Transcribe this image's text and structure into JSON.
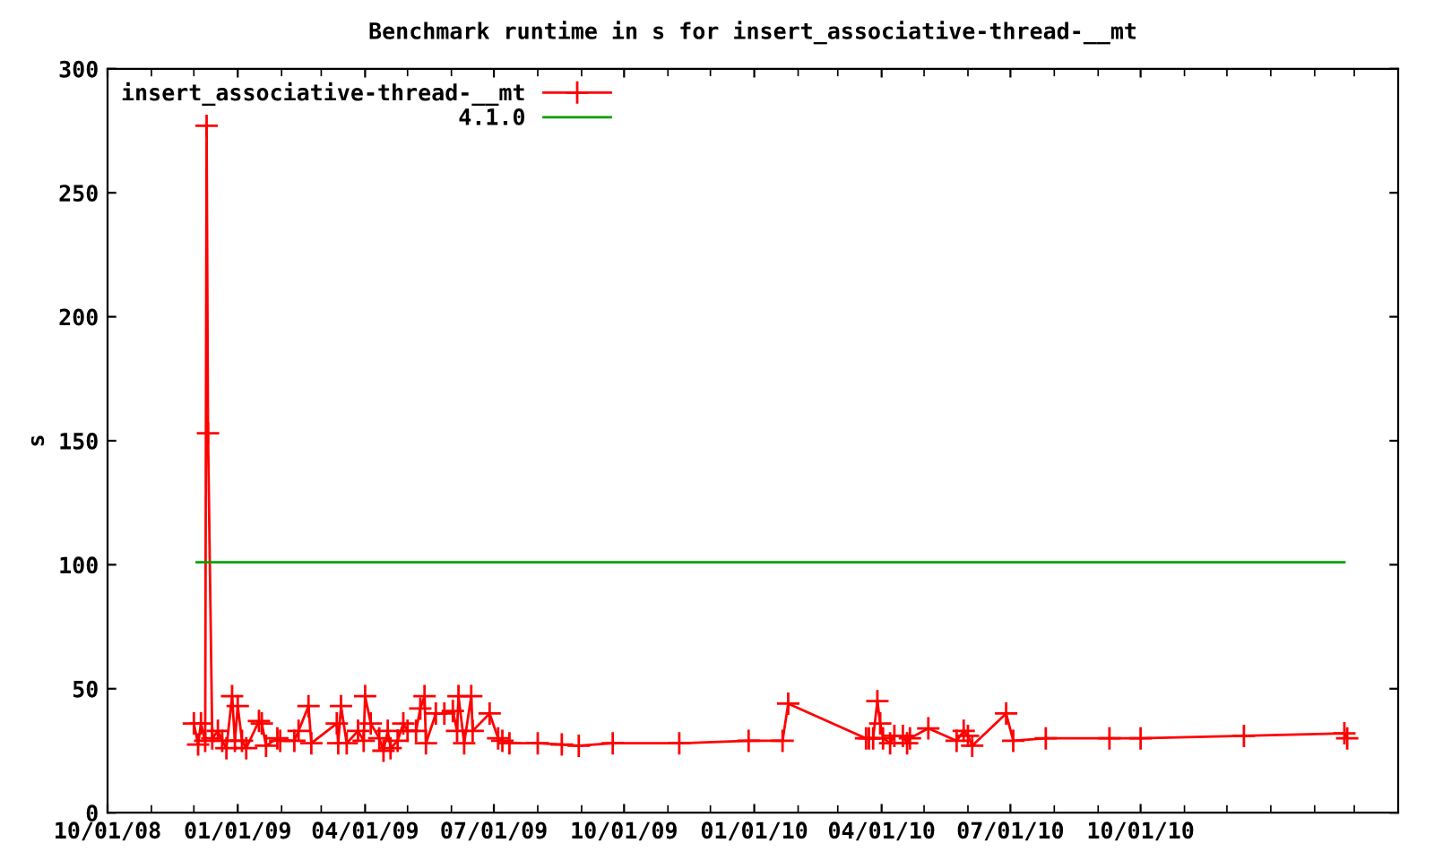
{
  "chart_data": {
    "type": "line",
    "title": "Benchmark runtime in s for insert_associative-thread-__mt",
    "ylabel": "s",
    "series": [
      {
        "name": "insert_associative-thread-__mt",
        "color": "#ff0000",
        "marker": "cross",
        "x": [
          "2008-12-01",
          "2008-12-04",
          "2008-12-06",
          "2008-12-09",
          "2008-12-10",
          "2008-12-11",
          "2008-12-14",
          "2008-12-18",
          "2008-12-21",
          "2008-12-24",
          "2008-12-28",
          "2008-12-30",
          "2009-01-01",
          "2009-01-04",
          "2009-01-07",
          "2009-01-16",
          "2009-01-18",
          "2009-01-21",
          "2009-01-29",
          "2009-01-31",
          "2009-02-10",
          "2009-02-13",
          "2009-02-20",
          "2009-02-22",
          "2009-03-12",
          "2009-03-13",
          "2009-03-15",
          "2009-03-19",
          "2009-03-27",
          "2009-03-31",
          "2009-04-01",
          "2009-04-05",
          "2009-04-11",
          "2009-04-14",
          "2009-04-17",
          "2009-04-19",
          "2009-04-24",
          "2009-04-28",
          "2009-05-01",
          "2009-05-07",
          "2009-05-10",
          "2009-05-13",
          "2009-05-14",
          "2009-05-21",
          "2009-05-27",
          "2009-06-02",
          "2009-06-05",
          "2009-06-06",
          "2009-06-10",
          "2009-06-15",
          "2009-06-16",
          "2009-06-28",
          "2009-07-04",
          "2009-07-07",
          "2009-07-12",
          "2009-08-01",
          "2009-08-18",
          "2009-08-30",
          "2009-09-23",
          "2009-11-09",
          "2009-12-28",
          "2010-01-21",
          "2010-01-25",
          "2010-03-21",
          "2010-03-23",
          "2010-03-26",
          "2010-03-29",
          "2010-03-31",
          "2010-04-02",
          "2010-04-07",
          "2010-04-10",
          "2010-04-16",
          "2010-04-19",
          "2010-04-21",
          "2010-05-04",
          "2010-05-24",
          "2010-05-29",
          "2010-06-01",
          "2010-06-04",
          "2010-06-28",
          "2010-07-03",
          "2010-07-26",
          "2010-09-09",
          "2010-10-01",
          "2010-12-13",
          "2011-02-22",
          "2011-02-24"
        ],
        "values": [
          36,
          27.5,
          36,
          29,
          277,
          153,
          30,
          33,
          29,
          26,
          47,
          29,
          43,
          29,
          26,
          37,
          36,
          27,
          30,
          29,
          29,
          33,
          43,
          28,
          36,
          28,
          43,
          28,
          33,
          29,
          47,
          36,
          30,
          25,
          33,
          26,
          29,
          36,
          33,
          33,
          42,
          47,
          28,
          40,
          40,
          41,
          33,
          47,
          28,
          47,
          33,
          40,
          30,
          29,
          28,
          28,
          27.5,
          27,
          28,
          28,
          29,
          29,
          44,
          30,
          30,
          30,
          45,
          36,
          30,
          28,
          31,
          31,
          28,
          30,
          34,
          29,
          33,
          31,
          27,
          40,
          29,
          30,
          30,
          30,
          31,
          32,
          30
        ]
      },
      {
        "name": "4.1.0",
        "color": "#00a000",
        "marker": "none",
        "x": [
          "2008-12-03",
          "2011-02-22"
        ],
        "values": [
          101,
          101
        ]
      }
    ],
    "xlim": [
      "2008-10-01",
      "2011-04-01"
    ],
    "xticks": [
      {
        "value": "2008-10-01",
        "label": "10/01/08"
      },
      {
        "value": "2009-01-01",
        "label": "01/01/09"
      },
      {
        "value": "2009-04-01",
        "label": "04/01/09"
      },
      {
        "value": "2009-07-01",
        "label": "07/01/09"
      },
      {
        "value": "2009-10-01",
        "label": "10/01/09"
      },
      {
        "value": "2010-01-01",
        "label": "01/01/10"
      },
      {
        "value": "2010-04-01",
        "label": "04/01/10"
      },
      {
        "value": "2010-07-01",
        "label": "07/01/10"
      },
      {
        "value": "2010-10-01",
        "label": "10/01/10"
      }
    ],
    "ylim": [
      0,
      300
    ],
    "yticks": [
      0,
      50,
      100,
      150,
      200,
      250,
      300
    ],
    "legend": "top left",
    "grid": false,
    "line_style": "solid"
  }
}
